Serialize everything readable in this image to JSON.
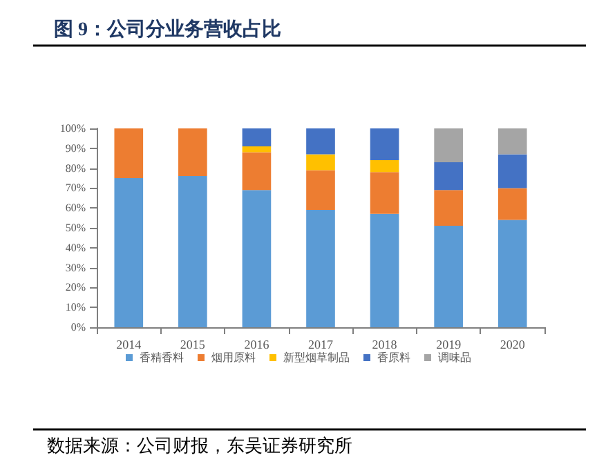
{
  "chart_data": {
    "type": "bar",
    "stacked": true,
    "title": "图 9：公司分业务营收占比",
    "annotations": [
      "数据来源：公司财报，东吴证券研究所"
    ],
    "categories": [
      "2014",
      "2015",
      "2016",
      "2017",
      "2018",
      "2019",
      "2020"
    ],
    "series": [
      {
        "name": "香精香料",
        "color": "#5b9bd5",
        "values": [
          75,
          76,
          69,
          59,
          57,
          51,
          54
        ]
      },
      {
        "name": "烟用原料",
        "color": "#ed7d31",
        "values": [
          25,
          24,
          19,
          20,
          21,
          18,
          16
        ]
      },
      {
        "name": "新型烟草制品",
        "color": "#ffc000",
        "values": [
          0,
          0,
          3,
          8,
          6,
          0,
          0
        ]
      },
      {
        "name": "香原料",
        "color": "#4472c4",
        "values": [
          0,
          0,
          9,
          13,
          16,
          14,
          17
        ]
      },
      {
        "name": "调味品",
        "color": "#a5a5a5",
        "values": [
          0,
          0,
          0,
          0,
          0,
          17,
          13
        ]
      }
    ],
    "ylim": [
      0,
      100
    ],
    "yticks": [
      {
        "value": 0,
        "label": "0%"
      },
      {
        "value": 10,
        "label": "10%"
      },
      {
        "value": 20,
        "label": "20%"
      },
      {
        "value": 30,
        "label": "30%"
      },
      {
        "value": 40,
        "label": "40%"
      },
      {
        "value": 50,
        "label": "50%"
      },
      {
        "value": 60,
        "label": "60%"
      },
      {
        "value": 70,
        "label": "70%"
      },
      {
        "value": 80,
        "label": "80%"
      },
      {
        "value": 90,
        "label": "90%"
      },
      {
        "value": 100,
        "label": "100%"
      }
    ],
    "grid": false,
    "legend": "bottom"
  }
}
